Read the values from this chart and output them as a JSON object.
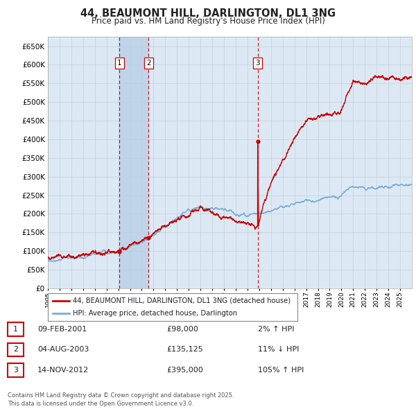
{
  "title": "44, BEAUMONT HILL, DARLINGTON, DL1 3NG",
  "subtitle": "Price paid vs. HM Land Registry's House Price Index (HPI)",
  "background_color": "#ffffff",
  "plot_bg_color": "#dce9f5",
  "grid_color": "#c8d4e0",
  "ylim": [
    0,
    675000
  ],
  "ytick_step": 50000,
  "x_start_year": 1995,
  "x_end_year": 2026,
  "sales": [
    {
      "label": "1",
      "date_num": 2001.11,
      "price": 98000,
      "date_str": "09-FEB-2001",
      "price_str": "£98,000",
      "hpi_pct": "2% ↑ HPI"
    },
    {
      "label": "2",
      "date_num": 2003.59,
      "price": 135125,
      "date_str": "04-AUG-2003",
      "price_str": "£135,125",
      "hpi_pct": "11% ↓ HPI"
    },
    {
      "label": "3",
      "date_num": 2012.87,
      "price": 395000,
      "date_str": "14-NOV-2012",
      "price_str": "£395,000",
      "hpi_pct": "105% ↑ HPI"
    }
  ],
  "shaded_region": [
    2001.11,
    2003.59
  ],
  "hpi_line_color": "#7aadd4",
  "price_line_color": "#cc0000",
  "sale_marker_color": "#cc0000",
  "dashed_line_color": "#cc0000",
  "legend_text_1": "44, BEAUMONT HILL, DARLINGTON, DL1 3NG (detached house)",
  "legend_text_2": "HPI: Average price, detached house, Darlington",
  "footer_text": "Contains HM Land Registry data © Crown copyright and database right 2025.\nThis data is licensed under the Open Government Licence v3.0.",
  "table_rows": [
    [
      "1",
      "09-FEB-2001",
      "£98,000",
      "2% ↑ HPI"
    ],
    [
      "2",
      "04-AUG-2003",
      "£135,125",
      "11% ↓ HPI"
    ],
    [
      "3",
      "14-NOV-2012",
      "£395,000",
      "105% ↑ HPI"
    ]
  ]
}
